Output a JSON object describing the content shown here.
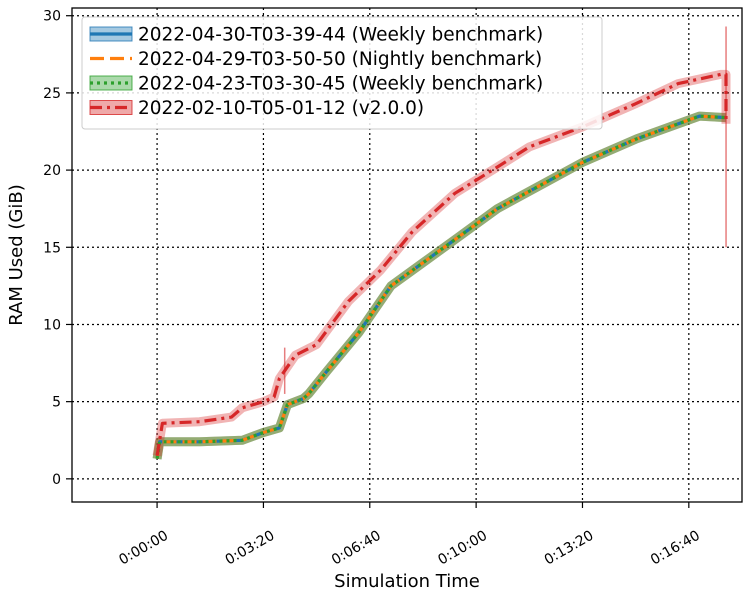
{
  "chart_data": {
    "type": "line",
    "title": "",
    "xlabel": "Simulation Time",
    "ylabel": "RAM Used (GiB)",
    "xlim": [
      -160,
      1100
    ],
    "ylim": [
      -1.5,
      30.5
    ],
    "x_ticks": [
      0,
      200,
      400,
      600,
      800,
      1000
    ],
    "x_tick_labels": [
      "0:00:00",
      "0:03:20",
      "0:06:40",
      "0:10:00",
      "0:13:20",
      "0:16:40"
    ],
    "y_ticks": [
      0,
      5,
      10,
      15,
      20,
      25,
      30
    ],
    "y_tick_labels": [
      "0",
      "5",
      "10",
      "15",
      "20",
      "25",
      "30"
    ],
    "grid": true,
    "legend_position": "upper-left",
    "series": [
      {
        "name": "2022-04-30-T03-39-44 (Weekly benchmark)",
        "color": "#1f77b4",
        "line_style": "solid",
        "points": [
          [
            0,
            1.3
          ],
          [
            5,
            2.4
          ],
          [
            80,
            2.4
          ],
          [
            160,
            2.5
          ],
          [
            200,
            3.0
          ],
          [
            230,
            3.3
          ],
          [
            245,
            4.8
          ],
          [
            275,
            5.2
          ],
          [
            285,
            5.5
          ],
          [
            320,
            7.0
          ],
          [
            380,
            9.5
          ],
          [
            440,
            12.5
          ],
          [
            500,
            14.0
          ],
          [
            560,
            15.5
          ],
          [
            640,
            17.5
          ],
          [
            800,
            20.5
          ],
          [
            900,
            22.0
          ],
          [
            1020,
            23.5
          ],
          [
            1070,
            23.4
          ]
        ]
      },
      {
        "name": "2022-04-29-T03-50-50 (Nightly benchmark)",
        "color": "#ff7f0e",
        "line_style": "dashed",
        "points": [
          [
            0,
            1.3
          ],
          [
            5,
            2.4
          ],
          [
            80,
            2.4
          ],
          [
            160,
            2.5
          ],
          [
            200,
            3.0
          ],
          [
            230,
            3.3
          ],
          [
            245,
            4.8
          ],
          [
            275,
            5.2
          ],
          [
            285,
            5.5
          ],
          [
            320,
            7.0
          ],
          [
            380,
            9.5
          ],
          [
            440,
            12.5
          ],
          [
            500,
            14.0
          ],
          [
            560,
            15.5
          ],
          [
            640,
            17.5
          ],
          [
            800,
            20.5
          ],
          [
            900,
            22.0
          ],
          [
            1020,
            23.5
          ],
          [
            1070,
            23.4
          ]
        ]
      },
      {
        "name": "2022-04-23-T03-30-45 (Weekly benchmark)",
        "color": "#2ca02c",
        "line_style": "dotted",
        "points": [
          [
            0,
            1.3
          ],
          [
            5,
            2.4
          ],
          [
            80,
            2.4
          ],
          [
            160,
            2.5
          ],
          [
            200,
            3.0
          ],
          [
            230,
            3.3
          ],
          [
            245,
            4.8
          ],
          [
            275,
            5.2
          ],
          [
            285,
            5.5
          ],
          [
            320,
            7.0
          ],
          [
            380,
            9.5
          ],
          [
            440,
            12.5
          ],
          [
            500,
            14.0
          ],
          [
            560,
            15.5
          ],
          [
            640,
            17.5
          ],
          [
            800,
            20.5
          ],
          [
            900,
            22.0
          ],
          [
            1020,
            23.5
          ],
          [
            1070,
            23.4
          ]
        ]
      },
      {
        "name": "2022-02-10-T05-01-12 (v2.0.0)",
        "color": "#d62728",
        "line_style": "dashdot",
        "points": [
          [
            0,
            1.5
          ],
          [
            10,
            3.6
          ],
          [
            80,
            3.7
          ],
          [
            140,
            4.0
          ],
          [
            160,
            4.6
          ],
          [
            200,
            5.0
          ],
          [
            220,
            5.3
          ],
          [
            230,
            6.5
          ],
          [
            260,
            8.0
          ],
          [
            300,
            8.7
          ],
          [
            360,
            11.5
          ],
          [
            420,
            13.5
          ],
          [
            480,
            16.0
          ],
          [
            560,
            18.5
          ],
          [
            640,
            20.2
          ],
          [
            700,
            21.5
          ],
          [
            800,
            22.8
          ],
          [
            900,
            24.3
          ],
          [
            980,
            25.6
          ],
          [
            1060,
            26.2
          ],
          [
            1070,
            26.2
          ],
          [
            1070,
            23.0
          ]
        ]
      }
    ],
    "error_bars": [
      {
        "x": 240,
        "low": 5.5,
        "high": 8.5,
        "color": "#d62728"
      },
      {
        "x": 1070,
        "low": 15.0,
        "high": 29.3,
        "color": "#d62728"
      }
    ]
  }
}
